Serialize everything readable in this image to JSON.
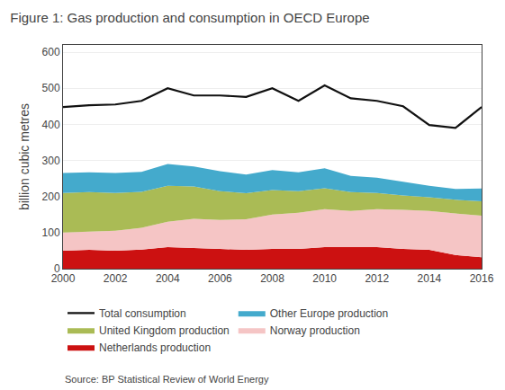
{
  "chart_data": {
    "type": "area",
    "stacked": true,
    "title": "Figure 1: Gas production and consumption in OECD Europe",
    "ylabel": "billion cubic metres",
    "annotations": [
      "Source: BP Statistical Review of World Energy"
    ],
    "x": [
      2000,
      2001,
      2002,
      2003,
      2004,
      2005,
      2006,
      2007,
      2008,
      2009,
      2010,
      2011,
      2012,
      2013,
      2014,
      2015,
      2016
    ],
    "series": [
      {
        "name": "Netherlands production",
        "color": "#cc1111",
        "values": [
          50,
          52,
          50,
          53,
          60,
          58,
          55,
          52,
          55,
          55,
          60,
          60,
          60,
          55,
          52,
          38,
          32
        ]
      },
      {
        "name": "Norway production",
        "color": "#f5c5c5",
        "values": [
          50,
          50,
          55,
          60,
          70,
          80,
          80,
          85,
          95,
          100,
          105,
          100,
          105,
          108,
          108,
          115,
          115
        ]
      },
      {
        "name": "United Kingdom production",
        "color": "#aabb55",
        "values": [
          110,
          110,
          105,
          100,
          100,
          90,
          80,
          72,
          68,
          60,
          58,
          52,
          45,
          40,
          38,
          38,
          40
        ]
      },
      {
        "name": "Other Europe production",
        "color": "#44aacc",
        "values": [
          55,
          55,
          55,
          55,
          60,
          55,
          55,
          52,
          55,
          52,
          55,
          45,
          42,
          38,
          32,
          30,
          35
        ]
      },
      {
        "name": "Total consumption",
        "type": "line",
        "color": "#111111",
        "values": [
          448,
          453,
          455,
          465,
          500,
          480,
          480,
          476,
          500,
          465,
          508,
          472,
          465,
          450,
          398,
          390,
          448
        ]
      }
    ],
    "xlim": [
      2000,
      2016
    ],
    "xticks": [
      2000,
      2002,
      2004,
      2006,
      2008,
      2010,
      2012,
      2014,
      2016
    ],
    "ylim": [
      0,
      620
    ],
    "yticks": [
      0,
      100,
      200,
      300,
      400,
      500,
      600
    ],
    "grid": true,
    "legend": "bottom"
  }
}
